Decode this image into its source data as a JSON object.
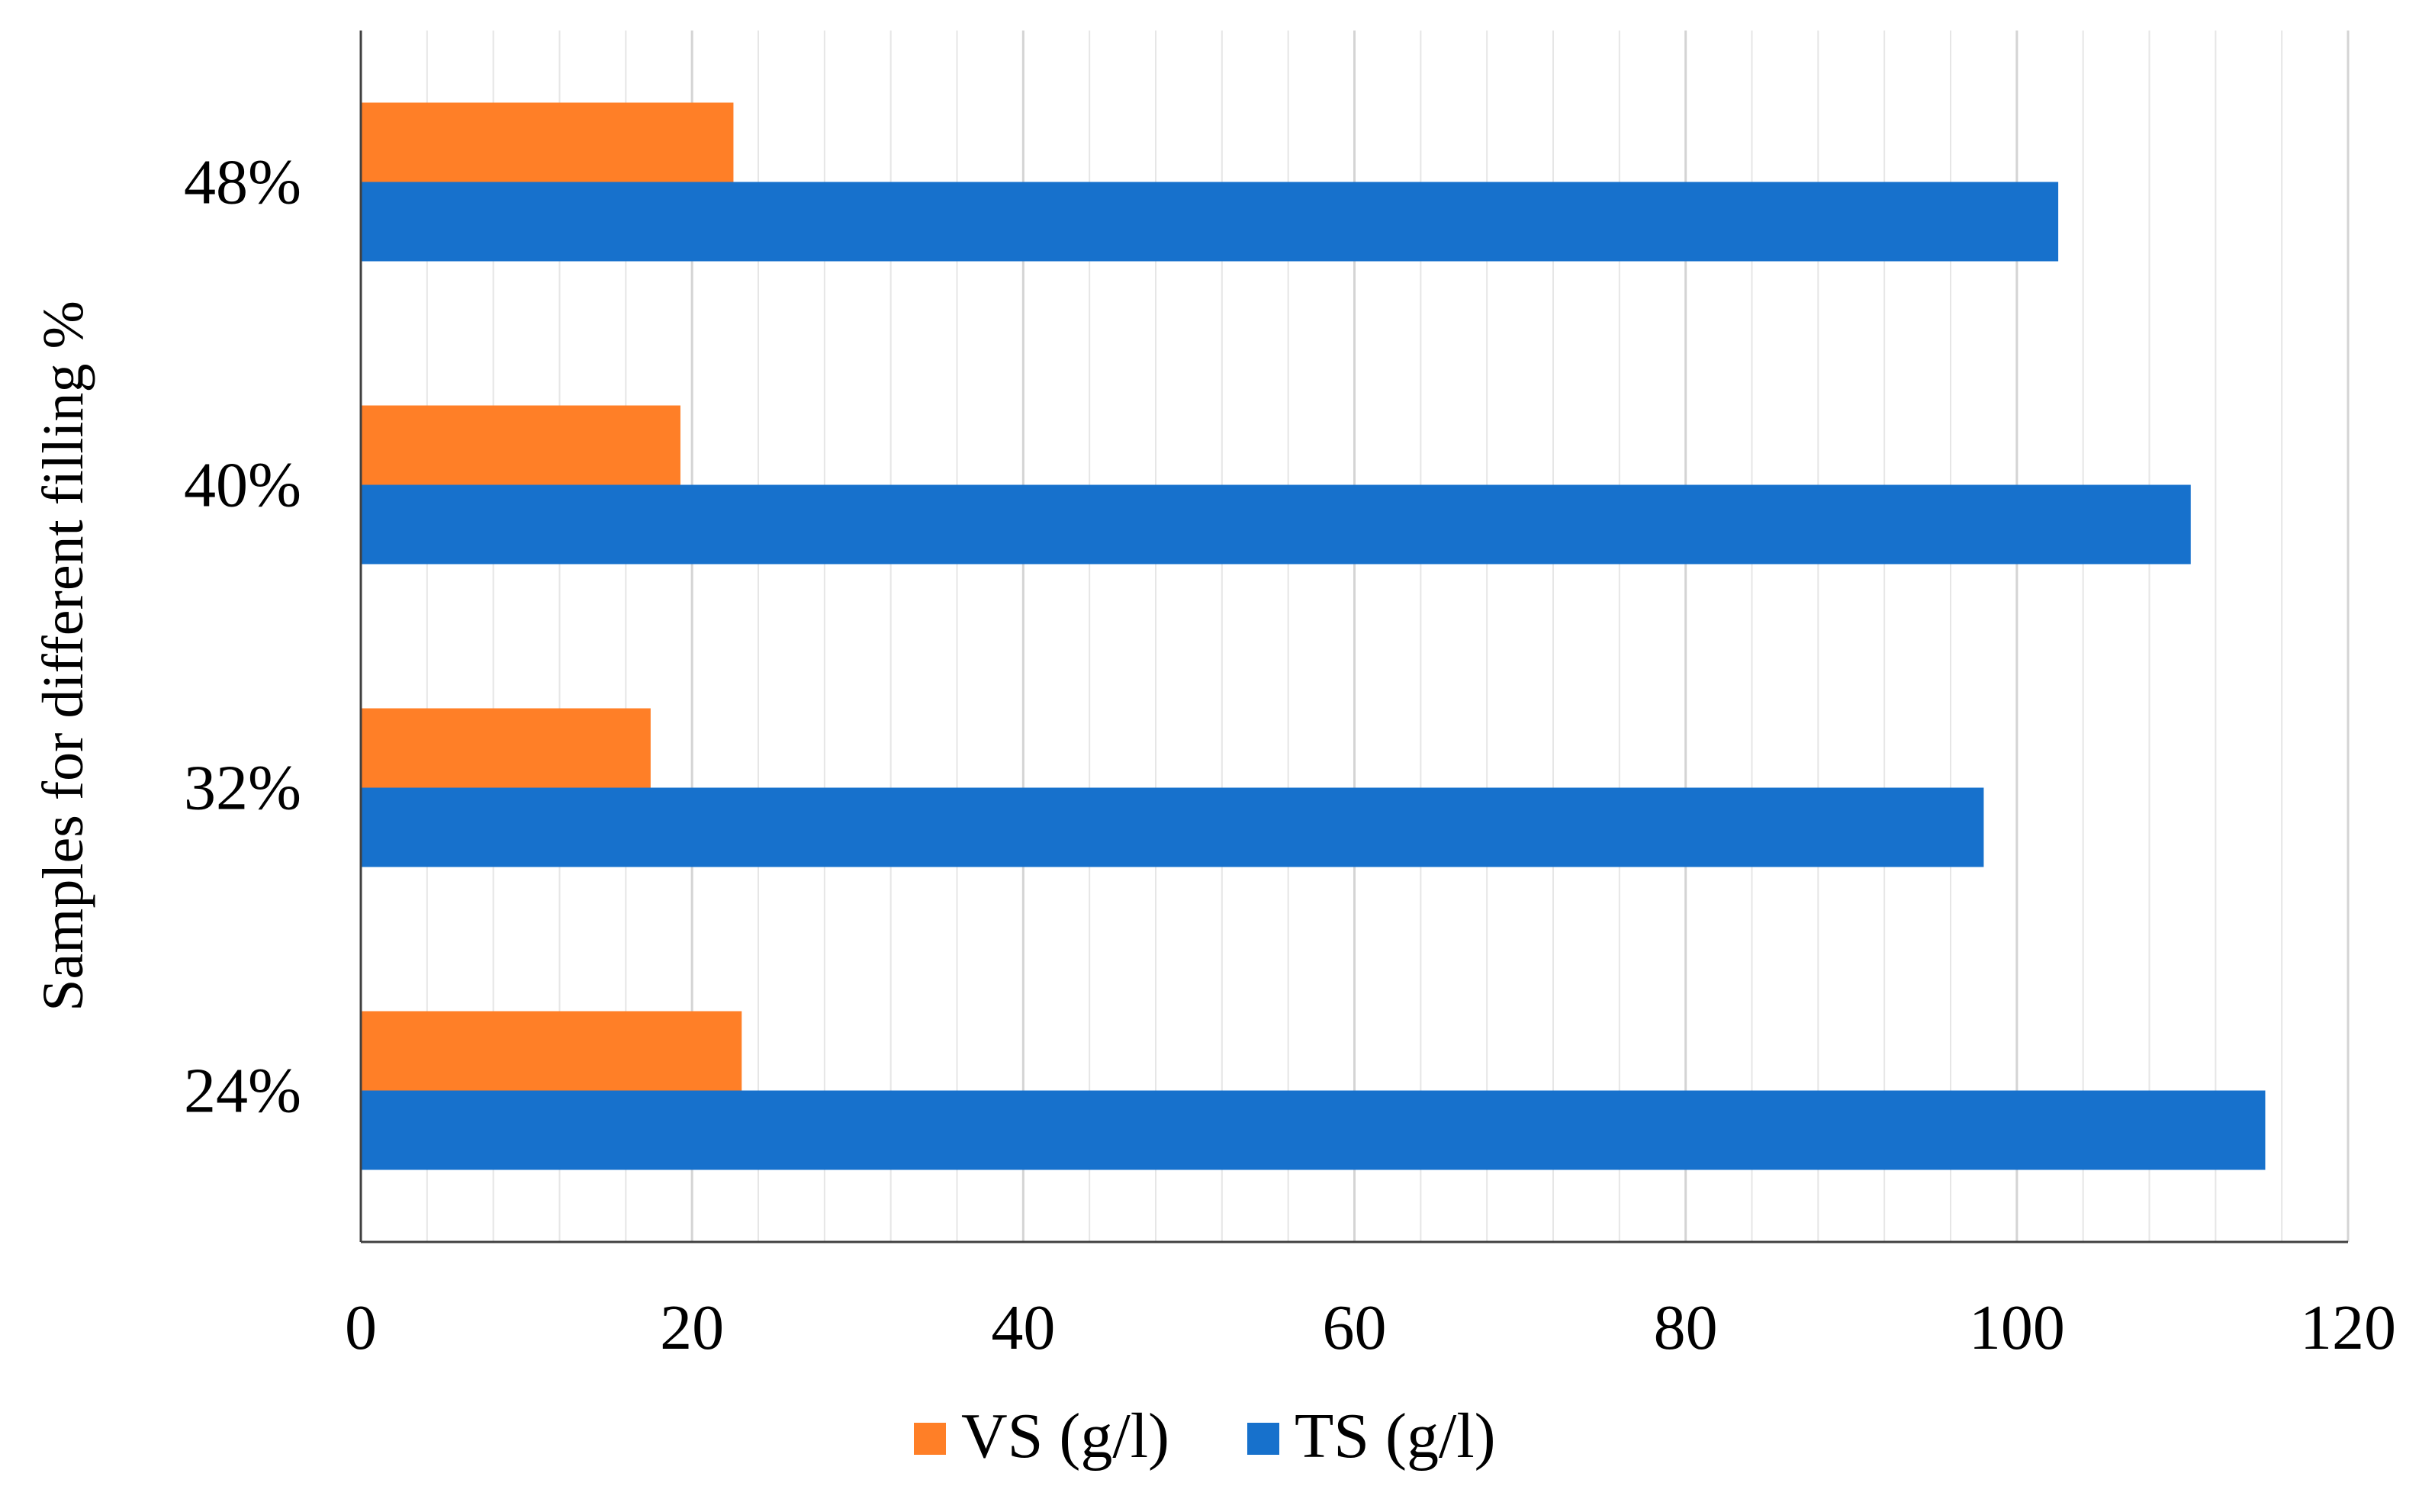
{
  "chart_data": {
    "type": "bar",
    "orientation": "horizontal",
    "title": "",
    "xlabel": "",
    "ylabel": "Samples for different filling %",
    "categories": [
      "24%",
      "32%",
      "40%",
      "48%"
    ],
    "series": [
      {
        "name": "VS (g/l)",
        "color": "#ff7f27",
        "values": [
          23,
          17.5,
          19.3,
          22.5
        ]
      },
      {
        "name": "TS (g/l)",
        "color": "#1771cc",
        "values": [
          115,
          98,
          110.5,
          102.5
        ]
      }
    ],
    "xlim": [
      0,
      120
    ],
    "xticks": [
      "0",
      "20",
      "40",
      "60",
      "80",
      "100",
      "120"
    ],
    "grid": "vertical, major and minor",
    "legend_position": "bottom-center"
  }
}
